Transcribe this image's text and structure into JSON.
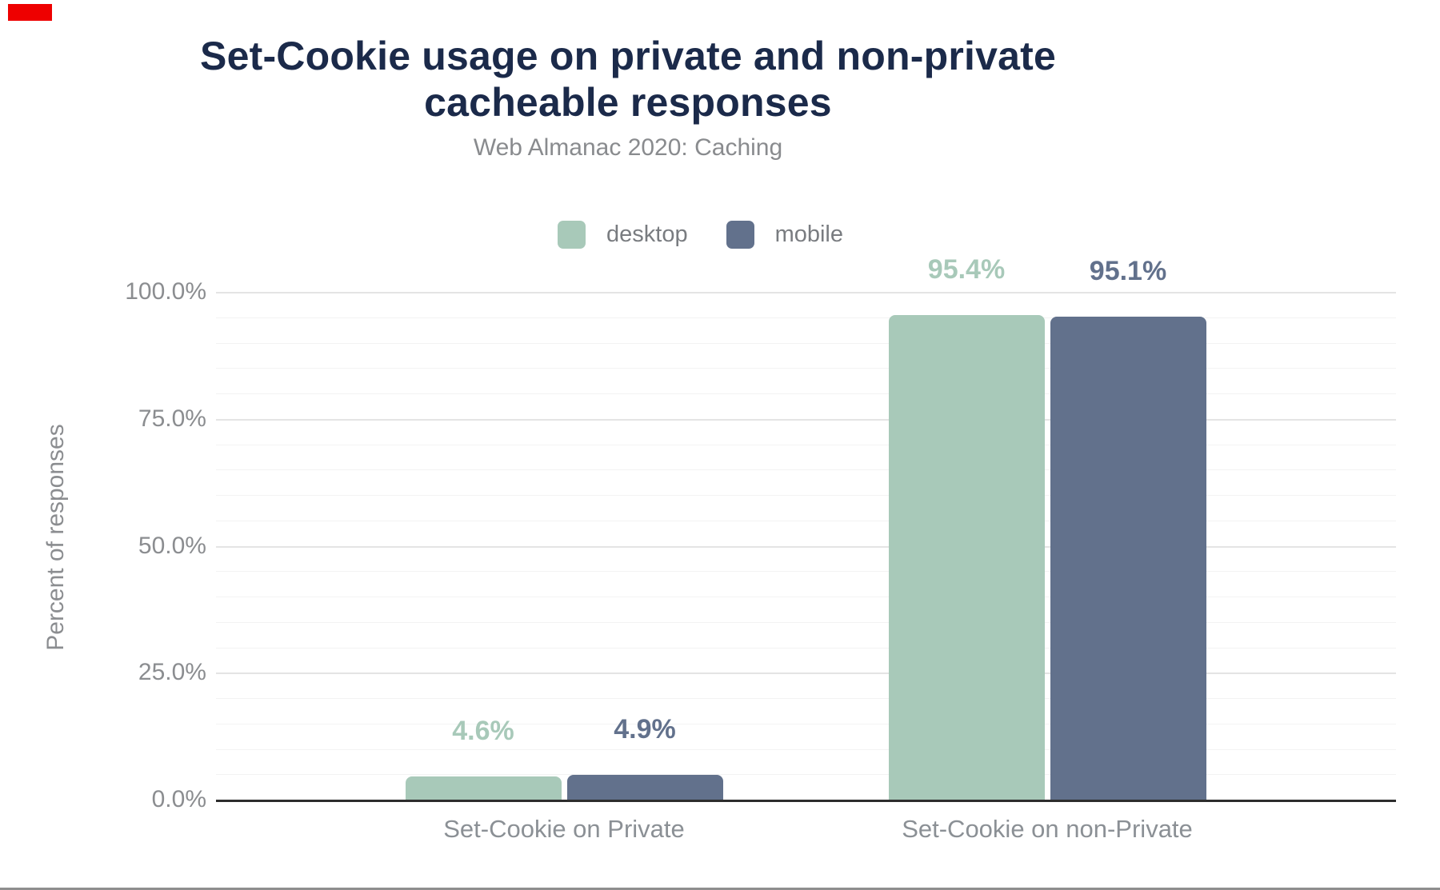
{
  "page": {
    "annotation_box_color": "#ee0000",
    "bottom_border_color": "#8f8f8f"
  },
  "chart_data": {
    "type": "bar",
    "title": "Set-Cookie usage on private and non-private cacheable responses",
    "title_lines": [
      "Set-Cookie usage on private and non-private",
      "cacheable responses"
    ],
    "subtitle": "Web Almanac 2020: Caching",
    "ylabel": "Percent of responses",
    "xlabel": "",
    "categories": [
      "Set-Cookie on Private",
      "Set-Cookie on non-Private"
    ],
    "series": [
      {
        "name": "desktop",
        "color": "#a8c9b9",
        "values": [
          4.6,
          95.4
        ],
        "data_labels": [
          "4.6%",
          "95.4%"
        ]
      },
      {
        "name": "mobile",
        "color": "#62718c",
        "values": [
          4.9,
          95.1
        ],
        "data_labels": [
          "4.9%",
          "95.1%"
        ]
      }
    ],
    "y_ticks": [
      {
        "label": "100.0%",
        "value": 100
      },
      {
        "label": "75.0%",
        "value": 75
      },
      {
        "label": "50.0%",
        "value": 50
      },
      {
        "label": "25.0%",
        "value": 25
      },
      {
        "label": "0.0%",
        "value": 0
      }
    ],
    "ylim": [
      0,
      100
    ],
    "minor_grid_step": 5,
    "grid": true,
    "legend_position": "top",
    "colors": {
      "title": "#1b2a4a",
      "subtitle": "#898b8e",
      "axis_labels": "#8b8d90",
      "category_labels": "#8b9095",
      "axis_line": "#2d2d2d"
    }
  }
}
